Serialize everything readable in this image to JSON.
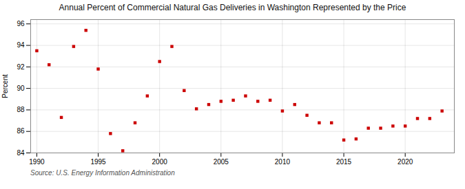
{
  "chart_data": {
    "type": "scatter",
    "title": "Annual Percent of Commercial Natural Gas Deliveries in Washington Represented by the Price",
    "ylabel": "Percent",
    "source": "Source: U.S. Energy Information Administration",
    "x": [
      1990,
      1991,
      1992,
      1993,
      1994,
      1995,
      1996,
      1997,
      1998,
      1999,
      2000,
      2001,
      2002,
      2003,
      2004,
      2005,
      2006,
      2007,
      2008,
      2009,
      2010,
      2011,
      2012,
      2013,
      2014,
      2015,
      2016,
      2017,
      2018,
      2019,
      2020,
      2021,
      2022,
      2023
    ],
    "values": [
      93.5,
      92.2,
      87.3,
      93.9,
      95.4,
      91.8,
      85.8,
      84.2,
      86.8,
      89.3,
      92.5,
      93.9,
      89.8,
      88.1,
      88.5,
      88.8,
      88.9,
      89.3,
      88.8,
      88.9,
      87.9,
      88.5,
      87.5,
      86.8,
      86.8,
      85.2,
      85.3,
      86.3,
      86.3,
      86.5,
      86.5,
      87.2,
      87.2,
      87.9
    ],
    "color": "#cc0000",
    "marker": "square",
    "xlim": [
      1989.5,
      2024
    ],
    "ylim": [
      84,
      96.4
    ],
    "xticks": [
      1990,
      1995,
      2000,
      2005,
      2010,
      2015,
      2020
    ],
    "yticks": [
      84,
      86,
      88,
      90,
      92,
      94,
      96
    ],
    "grid": true
  }
}
